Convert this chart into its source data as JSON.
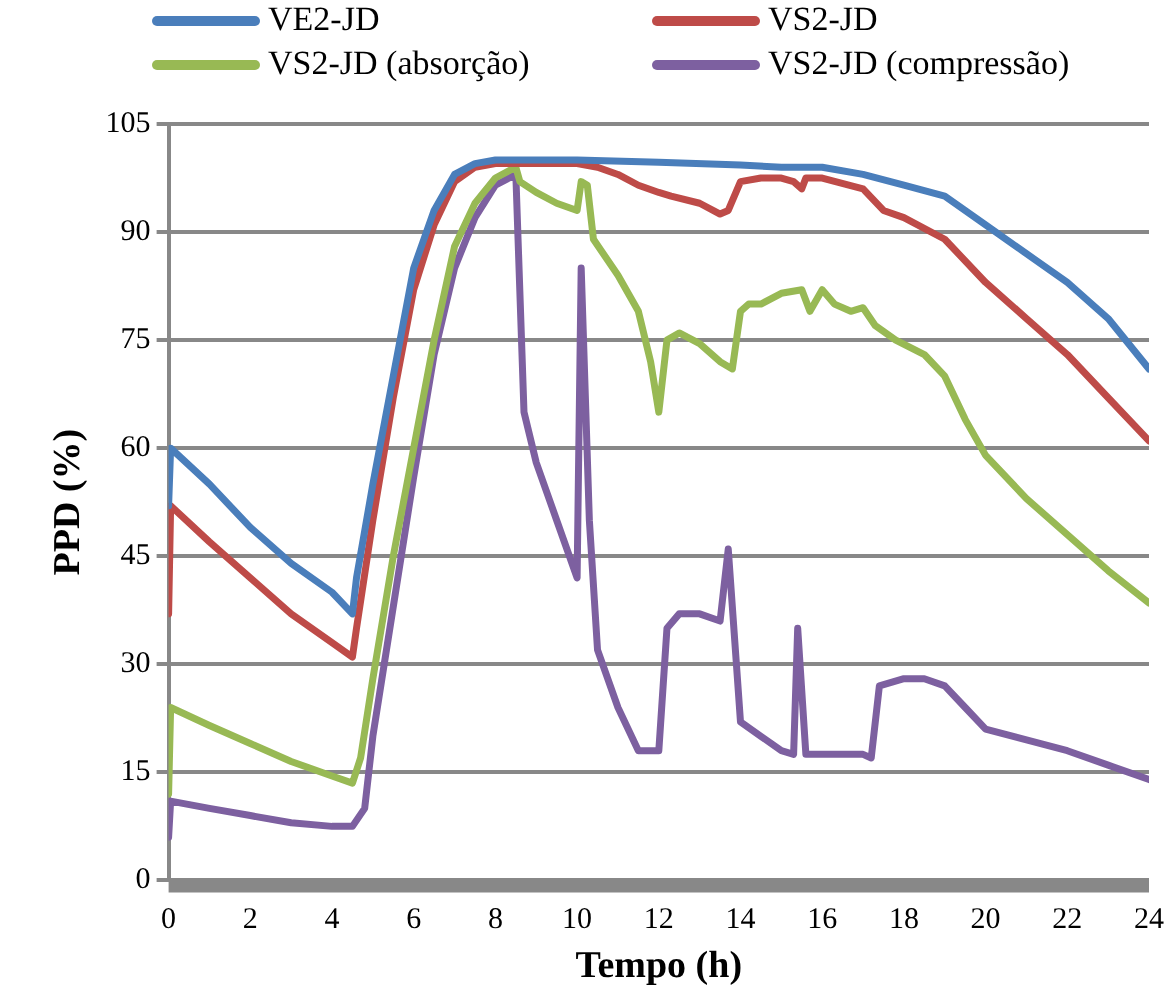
{
  "chart_data": {
    "type": "line",
    "xlabel": "Tempo (h)",
    "ylabel": "PPD (%)",
    "xlim": [
      0,
      24
    ],
    "xticks": [
      0,
      2,
      4,
      6,
      8,
      10,
      12,
      14,
      16,
      18,
      20,
      22,
      24
    ],
    "ylim": [
      0,
      105
    ],
    "yticks": [
      0,
      15,
      30,
      45,
      60,
      75,
      90,
      105
    ],
    "grid": "y",
    "legend": "top",
    "marker": "none",
    "line_style": "solid",
    "series": [
      {
        "name": "VE2-JD",
        "color": "#4a7ebb",
        "x": [
          0,
          0.05,
          1,
          2,
          3,
          4,
          4.5,
          4.6,
          5,
          5.5,
          6,
          6.5,
          7,
          7.5,
          8,
          10,
          12,
          14,
          15,
          16,
          17,
          18,
          19,
          20,
          21,
          22,
          23,
          24
        ],
        "values": [
          52,
          60,
          55,
          49,
          44,
          40,
          37,
          42,
          55,
          70,
          85,
          93,
          98,
          99.5,
          100,
          100,
          99.7,
          99.3,
          99,
          99,
          98,
          96.5,
          95,
          91,
          87,
          83,
          78,
          71
        ]
      },
      {
        "name": "VS2-JD",
        "color": "#be4b48",
        "x": [
          0,
          0.05,
          1,
          2,
          3,
          4,
          4.5,
          4.6,
          5,
          5.5,
          6,
          6.5,
          7,
          7.5,
          8,
          9,
          10,
          10.5,
          11,
          11.5,
          12,
          12.3,
          13,
          13.5,
          13.7,
          14,
          14.5,
          15,
          15.3,
          15.5,
          15.6,
          16,
          17,
          17.5,
          18,
          19,
          20,
          21,
          22,
          23,
          24
        ],
        "values": [
          37,
          52,
          47,
          42,
          37,
          33,
          31,
          35,
          50,
          67,
          82,
          91,
          97,
          99,
          99.5,
          99.5,
          99.5,
          99,
          98,
          96.5,
          95.5,
          95,
          94,
          92.5,
          93,
          97,
          97.5,
          97.5,
          97,
          96,
          97.5,
          97.5,
          96,
          93,
          92,
          89,
          83,
          78,
          73,
          67,
          61
        ]
      },
      {
        "name": "VS2-JD (absorção)",
        "color": "#98b954",
        "x": [
          0,
          0.05,
          1,
          2,
          3,
          4,
          4.5,
          4.7,
          5,
          5.5,
          6,
          6.5,
          7,
          7.5,
          8,
          8.5,
          8.6,
          9,
          9.5,
          10,
          10.1,
          10.25,
          10.4,
          11,
          11.5,
          11.8,
          12,
          12.2,
          12.5,
          13,
          13.5,
          13.8,
          14,
          14.2,
          14.5,
          15,
          15.5,
          15.7,
          16,
          16.3,
          16.7,
          17,
          17.3,
          17.8,
          18.5,
          19,
          19.5,
          20,
          21,
          22,
          23,
          24
        ],
        "values": [
          12,
          24,
          21.5,
          19,
          16.5,
          14.5,
          13.5,
          17,
          28,
          45,
          60,
          75,
          88,
          94,
          97.5,
          99,
          97,
          95.5,
          94,
          93,
          97,
          96.5,
          89,
          84,
          79,
          72,
          65,
          75,
          76,
          74.5,
          72,
          71,
          79,
          80,
          80,
          81.5,
          82,
          79,
          82,
          80,
          79,
          79.5,
          77,
          75,
          73,
          70,
          64,
          59,
          53,
          48,
          43,
          38.5
        ]
      },
      {
        "name": "VS2-JD (compressão)",
        "color": "#7d60a0",
        "x": [
          0,
          0.05,
          1,
          2,
          3,
          4,
          4.5,
          4.8,
          5,
          5.5,
          6,
          6.5,
          7,
          7.5,
          8,
          8.5,
          8.7,
          9,
          9.5,
          10,
          10.1,
          10.3,
          10.5,
          11,
          11.5,
          12,
          12.2,
          12.5,
          13,
          13.5,
          13.7,
          13.9,
          14,
          14.5,
          15,
          15.3,
          15.4,
          15.6,
          16,
          17,
          17.2,
          17.4,
          18,
          18.5,
          19,
          19.5,
          20,
          21,
          22,
          23,
          24
        ],
        "values": [
          6,
          11,
          10,
          9,
          8,
          7.5,
          7.5,
          10,
          20,
          38,
          56,
          73,
          85,
          92,
          96.5,
          98,
          65,
          58,
          50,
          42,
          85,
          50,
          32,
          24,
          18,
          18,
          35,
          37,
          37,
          36,
          46,
          30,
          22,
          20,
          18,
          17.5,
          35,
          17.5,
          17.5,
          17.5,
          17,
          27,
          28,
          28,
          27,
          24,
          21,
          19.5,
          18,
          16,
          14
        ]
      }
    ]
  }
}
